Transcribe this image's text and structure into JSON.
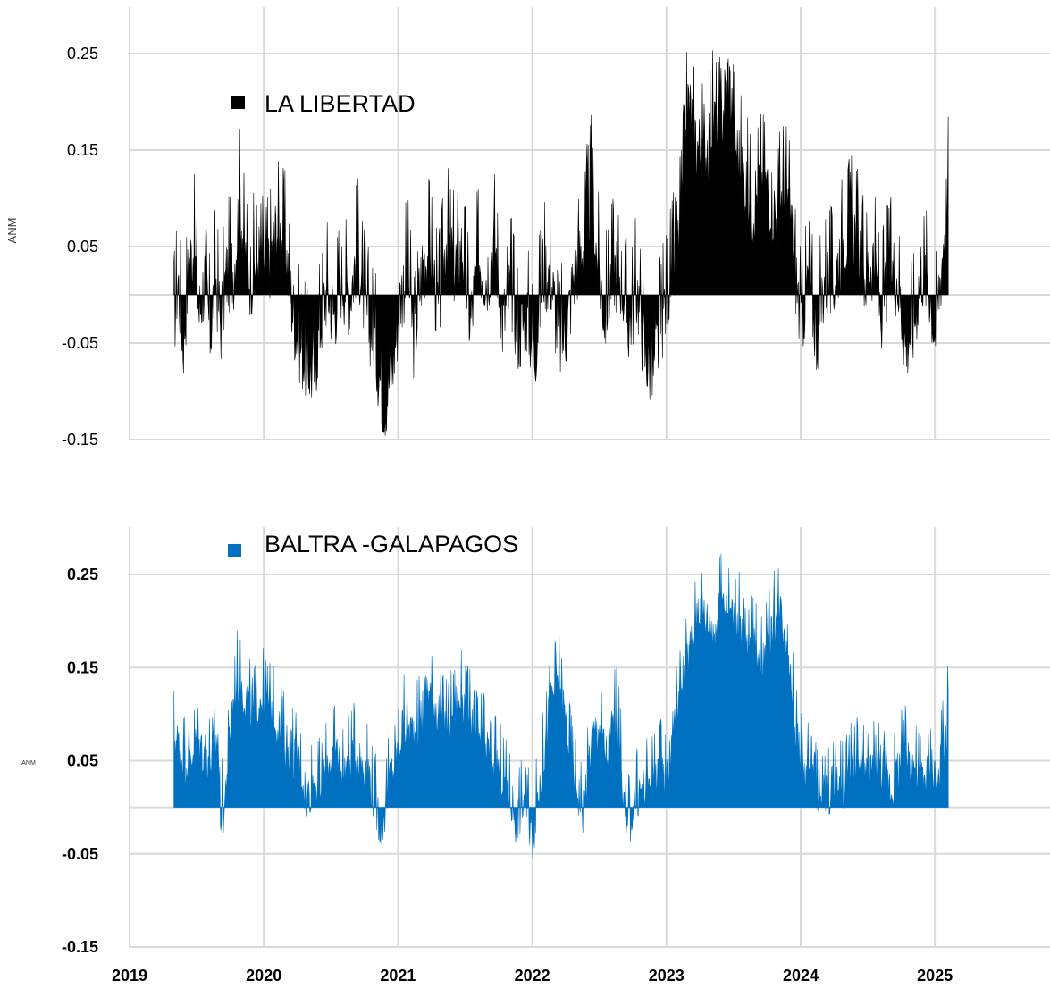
{
  "chart_data": [
    {
      "type": "area",
      "title": "",
      "legend": "LA LIBERTAD",
      "legend_placement": "top-left",
      "color": "#000000",
      "ylabel": "ANM",
      "yticks": [
        "-0.15",
        "-0.05",
        "0.05",
        "0.15",
        "0.25"
      ],
      "ylim": [
        -0.15,
        0.25
      ],
      "xlim": [
        2019.0,
        2025.85
      ],
      "grid": true,
      "x": [
        2019.33,
        2019.36,
        2019.4,
        2019.44,
        2019.48,
        2019.52,
        2019.56,
        2019.6,
        2019.64,
        2019.68,
        2019.72,
        2019.78,
        2019.82,
        2019.86,
        2019.9,
        2019.96,
        2020.03,
        2020.1,
        2020.16,
        2020.22,
        2020.27,
        2020.32,
        2020.37,
        2020.42,
        2020.47,
        2020.52,
        2020.58,
        2020.64,
        2020.7,
        2020.76,
        2020.82,
        2020.86,
        2020.9,
        2020.96,
        2021.02,
        2021.07,
        2021.12,
        2021.18,
        2021.24,
        2021.3,
        2021.36,
        2021.42,
        2021.48,
        2021.54,
        2021.6,
        2021.66,
        2021.72,
        2021.78,
        2021.84,
        2021.9,
        2021.96,
        2022.02,
        2022.08,
        2022.14,
        2022.2,
        2022.26,
        2022.32,
        2022.38,
        2022.44,
        2022.48,
        2022.54,
        2022.6,
        2022.66,
        2022.72,
        2022.78,
        2022.84,
        2022.9,
        2022.96,
        2023.02,
        2023.08,
        2023.12,
        2023.16,
        2023.22,
        2023.28,
        2023.34,
        2023.4,
        2023.46,
        2023.52,
        2023.58,
        2023.64,
        2023.7,
        2023.76,
        2023.82,
        2023.88,
        2023.94,
        2024.0,
        2024.06,
        2024.12,
        2024.18,
        2024.24,
        2024.3,
        2024.36,
        2024.42,
        2024.48,
        2024.54,
        2024.6,
        2024.66,
        2024.72,
        2024.78,
        2024.84,
        2024.9,
        2024.96,
        2025.0,
        2025.04,
        2025.08,
        2025.1
      ],
      "y": [
        -0.03,
        0.02,
        -0.05,
        0.03,
        0.05,
        -0.02,
        0.02,
        -0.04,
        0.02,
        -0.03,
        0.02,
        0.03,
        0.1,
        0.04,
        0.02,
        0.04,
        0.03,
        0.07,
        0.05,
        -0.02,
        -0.05,
        -0.07,
        -0.08,
        -0.03,
        0.01,
        -0.02,
        0.02,
        0.0,
        0.05,
        -0.02,
        -0.04,
        -0.08,
        -0.11,
        -0.07,
        0.0,
        0.03,
        -0.05,
        0.03,
        0.05,
        -0.02,
        0.06,
        0.03,
        0.05,
        -0.03,
        0.04,
        0.02,
        0.06,
        -0.03,
        0.01,
        -0.04,
        -0.02,
        -0.06,
        0.03,
        0.02,
        -0.05,
        -0.03,
        0.03,
        0.05,
        0.11,
        0.04,
        -0.02,
        0.03,
        0.02,
        -0.03,
        0.01,
        -0.06,
        -0.08,
        -0.03,
        0.01,
        0.04,
        0.1,
        0.2,
        0.16,
        0.14,
        0.18,
        0.17,
        0.23,
        0.15,
        0.12,
        0.09,
        0.12,
        0.11,
        0.08,
        0.12,
        0.06,
        -0.03,
        0.02,
        -0.04,
        0.02,
        0.01,
        0.05,
        0.07,
        0.06,
        0.02,
        0.04,
        -0.02,
        0.03,
        0.02,
        -0.05,
        -0.03,
        0.03,
        0.01,
        -0.04,
        0.02,
        0.08,
        0.12
      ]
    },
    {
      "type": "area",
      "title": "",
      "legend": "BALTRA -GALAPAGOS",
      "legend_placement": "top-left",
      "color": "#0070c0",
      "ylabel": "ANM",
      "yticks": [
        "-0.15",
        "-0.05",
        "0.05",
        "0.15",
        "0.25"
      ],
      "ylim": [
        -0.15,
        0.3
      ],
      "xlim": [
        2019.0,
        2025.85
      ],
      "xticks": [
        "2019",
        "2020",
        "2021",
        "2022",
        "2023",
        "2024",
        "2025"
      ],
      "grid": true,
      "x": [
        2019.33,
        2019.38,
        2019.44,
        2019.5,
        2019.56,
        2019.62,
        2019.66,
        2019.67,
        2019.71,
        2019.72,
        2019.76,
        2019.8,
        2019.86,
        2019.92,
        2019.98,
        2020.04,
        2020.1,
        2020.16,
        2020.22,
        2020.28,
        2020.32,
        2020.36,
        2020.42,
        2020.48,
        2020.54,
        2020.6,
        2020.66,
        2020.72,
        2020.78,
        2020.84,
        2020.88,
        2020.92,
        2020.98,
        2021.04,
        2021.1,
        2021.16,
        2021.22,
        2021.28,
        2021.34,
        2021.4,
        2021.46,
        2021.52,
        2021.58,
        2021.64,
        2021.7,
        2021.76,
        2021.82,
        2021.88,
        2021.94,
        2022.0,
        2022.04,
        2022.08,
        2022.14,
        2022.2,
        2022.26,
        2022.32,
        2022.38,
        2022.44,
        2022.5,
        2022.56,
        2022.62,
        2022.66,
        2022.7,
        2022.76,
        2022.82,
        2022.88,
        2022.94,
        2023.0,
        2023.06,
        2023.12,
        2023.18,
        2023.24,
        2023.3,
        2023.36,
        2023.42,
        2023.48,
        2023.54,
        2023.6,
        2023.66,
        2023.72,
        2023.78,
        2023.84,
        2023.9,
        2023.96,
        2024.02,
        2024.08,
        2024.14,
        2024.2,
        2024.26,
        2024.32,
        2024.38,
        2024.44,
        2024.5,
        2024.56,
        2024.62,
        2024.68,
        2024.74,
        2024.8,
        2024.86,
        2024.92,
        2024.98,
        2025.02,
        2025.06,
        2025.08,
        2025.1
      ],
      "y": [
        0.08,
        0.06,
        0.05,
        0.07,
        0.06,
        0.05,
        0.08,
        0.0,
        0.0,
        0.03,
        0.1,
        0.14,
        0.12,
        0.1,
        0.12,
        0.11,
        0.09,
        0.07,
        0.06,
        0.04,
        0.01,
        0.03,
        0.02,
        0.05,
        0.06,
        0.04,
        0.06,
        0.05,
        0.04,
        0.0,
        -0.02,
        0.02,
        0.05,
        0.09,
        0.08,
        0.09,
        0.13,
        0.11,
        0.09,
        0.1,
        0.12,
        0.1,
        0.08,
        0.07,
        0.05,
        0.04,
        0.02,
        -0.01,
        0.01,
        -0.03,
        0.01,
        0.05,
        0.12,
        0.14,
        0.08,
        0.03,
        0.0,
        0.07,
        0.09,
        0.05,
        0.11,
        0.06,
        -0.03,
        0.01,
        0.02,
        0.03,
        0.05,
        0.03,
        0.1,
        0.14,
        0.17,
        0.22,
        0.2,
        0.19,
        0.23,
        0.21,
        0.2,
        0.17,
        0.18,
        0.16,
        0.19,
        0.22,
        0.18,
        0.09,
        0.04,
        0.06,
        0.01,
        0.02,
        0.03,
        0.02,
        0.04,
        0.05,
        0.03,
        0.06,
        0.04,
        0.02,
        0.05,
        0.06,
        0.04,
        0.03,
        0.05,
        0.02,
        0.07,
        0.04,
        0.14
      ]
    }
  ]
}
